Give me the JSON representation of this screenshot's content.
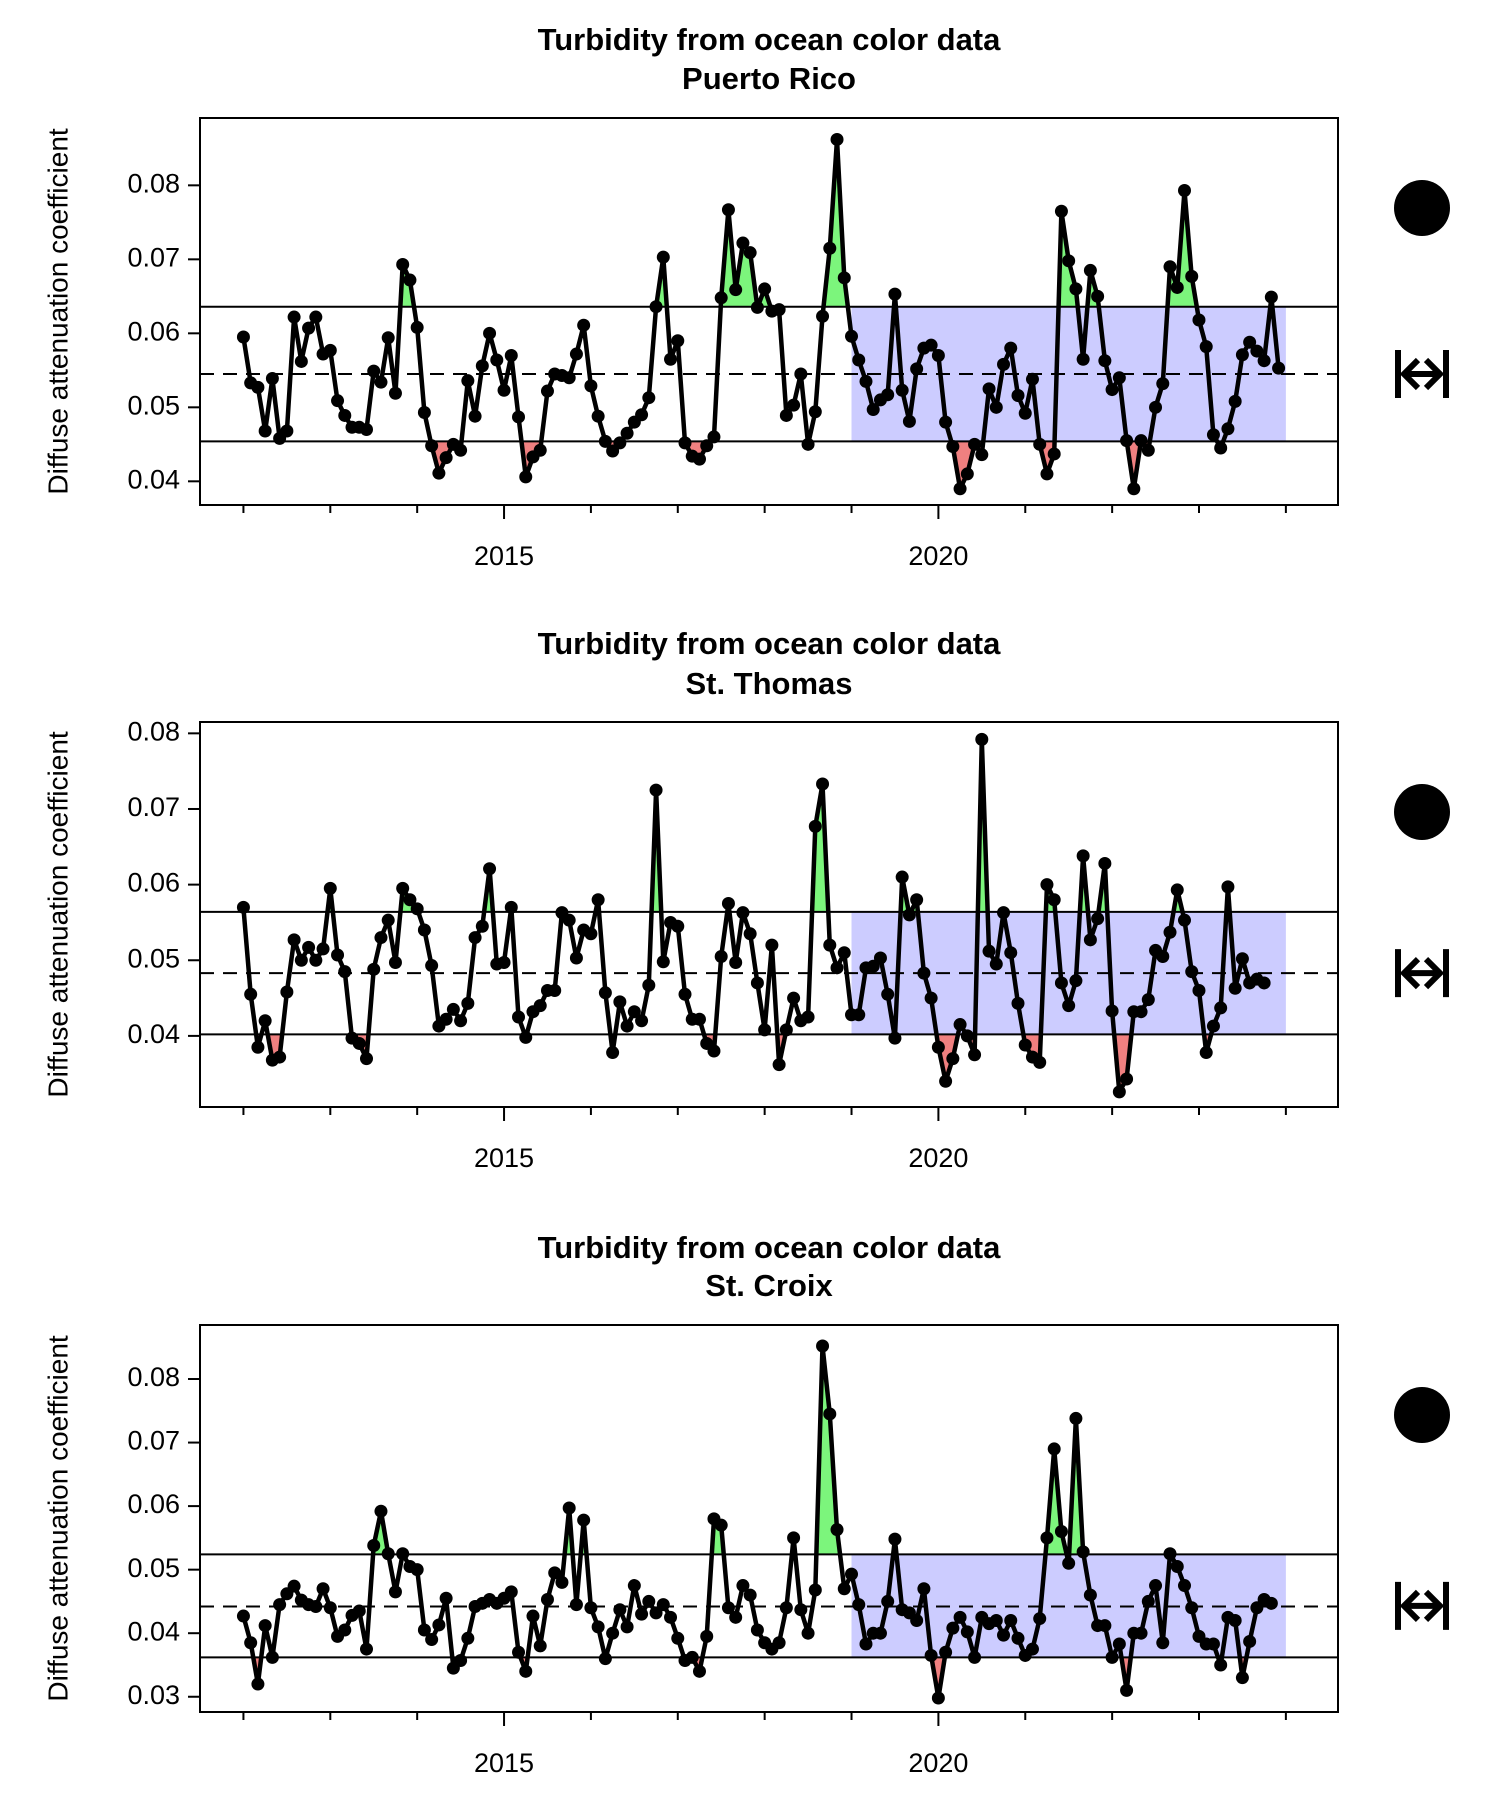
{
  "chart_data": [
    {
      "type": "line",
      "title": "Turbidity from ocean color data",
      "subtitle": "Puerto Rico",
      "xlabel": "",
      "ylabel": "Diffuse attenuation coefficient",
      "x_ticks": [
        "2015",
        "2020"
      ],
      "y_ticks": [
        "0.04",
        "0.05",
        "0.06",
        "0.07",
        "0.08"
      ],
      "xlim": [
        2011.5,
        2024.6
      ],
      "ylim": [
        0.0368,
        0.0891
      ],
      "grid": false,
      "mean": 0.0545,
      "upper_bound": 0.0636,
      "lower_bound": 0.0454,
      "recent_period": [
        2019.0,
        2024.0
      ],
      "trend_symbol": "filled-circle",
      "variability_symbol": "double-arrow",
      "colors": {
        "line": "#000000",
        "above": "#7CF57C",
        "below": "#F08080",
        "recent_shade": "#CCCCFF"
      },
      "series": [
        {
          "x_start": 2012.0,
          "x_step": 0.08333,
          "values": [
            0.0595,
            0.0533,
            0.0527,
            0.0468,
            0.0539,
            0.0458,
            0.0468,
            0.0622,
            0.0562,
            0.0607,
            0.0622,
            0.0572,
            0.0577,
            0.0509,
            0.0489,
            0.0473,
            0.0473,
            0.047,
            0.0549,
            0.0534,
            0.0594,
            0.0519,
            0.0693,
            0.0672,
            0.0608,
            0.0493,
            0.0448,
            0.0411,
            0.0432,
            0.045,
            0.0442,
            0.0536,
            0.0488,
            0.0556,
            0.06,
            0.0564,
            0.0523,
            0.057,
            0.0487,
            0.0406,
            0.0433,
            0.0442,
            0.0522,
            0.0545,
            0.0543,
            0.054,
            0.0572,
            0.0611,
            0.0529,
            0.0488,
            0.0454,
            0.0441,
            0.0452,
            0.0465,
            0.048,
            0.049,
            0.0513,
            0.0636,
            0.0703,
            0.0565,
            0.059,
            0.0452,
            0.0434,
            0.043,
            0.0448,
            0.046,
            0.0648,
            0.0767,
            0.0659,
            0.0722,
            0.0709,
            0.0635,
            0.066,
            0.063,
            0.0632,
            0.0489,
            0.0503,
            0.0545,
            0.045,
            0.0494,
            0.0623,
            0.0715,
            0.0862,
            0.0675,
            0.0596,
            0.0564,
            0.0535,
            0.0497,
            0.051,
            0.0517,
            0.0653,
            0.0523,
            0.0481,
            0.0552,
            0.058,
            0.0584,
            0.057,
            0.048,
            0.0447,
            0.039,
            0.041,
            0.045,
            0.0436,
            0.0525,
            0.05,
            0.0558,
            0.058,
            0.0516,
            0.0492,
            0.0538,
            0.045,
            0.041,
            0.0437,
            0.0765,
            0.0698,
            0.066,
            0.0565,
            0.0685,
            0.065,
            0.0563,
            0.0524,
            0.054,
            0.0455,
            0.039,
            0.0455,
            0.0442,
            0.05,
            0.0532,
            0.069,
            0.0662,
            0.0793,
            0.0677,
            0.0618,
            0.0582,
            0.0463,
            0.0445,
            0.0471,
            0.0508,
            0.0571,
            0.0588,
            0.0576,
            0.0563,
            0.0649,
            0.0553
          ]
        }
      ]
    },
    {
      "type": "line",
      "title": "Turbidity from ocean color data",
      "subtitle": "St. Thomas",
      "xlabel": "",
      "ylabel": "Diffuse attenuation coefficient",
      "x_ticks": [
        "2015",
        "2020"
      ],
      "y_ticks": [
        "0.04",
        "0.05",
        "0.06",
        "0.07",
        "0.08"
      ],
      "xlim": [
        2011.5,
        2024.6
      ],
      "ylim": [
        0.0306,
        0.0815
      ],
      "grid": false,
      "mean": 0.0483,
      "upper_bound": 0.0564,
      "lower_bound": 0.0402,
      "recent_period": [
        2019.0,
        2024.0
      ],
      "trend_symbol": "filled-circle",
      "variability_symbol": "double-arrow",
      "colors": {
        "line": "#000000",
        "above": "#7CF57C",
        "below": "#F08080",
        "recent_shade": "#CCCCFF"
      },
      "series": [
        {
          "x_start": 2012.0,
          "x_step": 0.08333,
          "values": [
            0.057,
            0.0455,
            0.0385,
            0.042,
            0.0368,
            0.0372,
            0.0458,
            0.0527,
            0.05,
            0.0517,
            0.05,
            0.0515,
            0.0595,
            0.0507,
            0.0485,
            0.0397,
            0.039,
            0.037,
            0.0488,
            0.053,
            0.0553,
            0.0497,
            0.0595,
            0.058,
            0.0568,
            0.054,
            0.0493,
            0.0413,
            0.0422,
            0.0435,
            0.042,
            0.0443,
            0.053,
            0.0545,
            0.0621,
            0.0495,
            0.0497,
            0.057,
            0.0425,
            0.0398,
            0.0432,
            0.044,
            0.046,
            0.046,
            0.0563,
            0.0553,
            0.0503,
            0.054,
            0.0535,
            0.058,
            0.0457,
            0.0378,
            0.0445,
            0.0413,
            0.0432,
            0.042,
            0.0467,
            0.0725,
            0.0498,
            0.055,
            0.0545,
            0.0455,
            0.0422,
            0.0422,
            0.039,
            0.038,
            0.0505,
            0.0575,
            0.0497,
            0.0563,
            0.0535,
            0.047,
            0.0408,
            0.052,
            0.0362,
            0.0408,
            0.045,
            0.042,
            0.0425,
            0.0677,
            0.0733,
            0.052,
            0.049,
            0.051,
            0.0428,
            0.0428,
            0.049,
            0.0492,
            0.0503,
            0.0455,
            0.0397,
            0.061,
            0.056,
            0.058,
            0.0483,
            0.045,
            0.0385,
            0.034,
            0.037,
            0.0415,
            0.04,
            0.0375,
            0.0792,
            0.0512,
            0.0495,
            0.0563,
            0.051,
            0.0443,
            0.0388,
            0.0372,
            0.0365,
            0.06,
            0.058,
            0.047,
            0.044,
            0.0473,
            0.0638,
            0.0527,
            0.0555,
            0.0628,
            0.0433,
            0.0326,
            0.0343,
            0.0432,
            0.0432,
            0.0448,
            0.0513,
            0.0505,
            0.0537,
            0.0593,
            0.0553,
            0.0485,
            0.046,
            0.0378,
            0.0413,
            0.0437,
            0.0597,
            0.0463,
            0.0502,
            0.047,
            0.0475,
            0.047
          ]
        }
      ]
    },
    {
      "type": "line",
      "title": "Turbidity from ocean color data",
      "subtitle": "St. Croix",
      "xlabel": "",
      "ylabel": "Diffuse attenuation coefficient",
      "x_ticks": [
        "2015",
        "2020"
      ],
      "y_ticks": [
        "0.03",
        "0.04",
        "0.05",
        "0.06",
        "0.07",
        "0.08"
      ],
      "xlim": [
        2011.5,
        2024.6
      ],
      "ylim": [
        0.0276,
        0.0885
      ],
      "grid": false,
      "mean": 0.0442,
      "upper_bound": 0.0524,
      "lower_bound": 0.0362,
      "recent_period": [
        2019.0,
        2024.0
      ],
      "trend_symbol": "filled-circle",
      "variability_symbol": "double-arrow",
      "colors": {
        "line": "#000000",
        "above": "#7CF57C",
        "below": "#F08080",
        "recent_shade": "#CCCCFF"
      },
      "series": [
        {
          "x_start": 2012.0,
          "x_step": 0.08333,
          "values": [
            0.0427,
            0.0385,
            0.032,
            0.0412,
            0.0362,
            0.0445,
            0.0462,
            0.0474,
            0.0452,
            0.0445,
            0.0442,
            0.047,
            0.044,
            0.0395,
            0.0405,
            0.0428,
            0.0435,
            0.0375,
            0.0538,
            0.0592,
            0.0525,
            0.0465,
            0.0525,
            0.0505,
            0.05,
            0.0405,
            0.039,
            0.0413,
            0.0455,
            0.0345,
            0.0357,
            0.0392,
            0.0442,
            0.0447,
            0.0453,
            0.0447,
            0.0455,
            0.0465,
            0.037,
            0.034,
            0.0427,
            0.038,
            0.0453,
            0.0495,
            0.048,
            0.0597,
            0.0445,
            0.0578,
            0.044,
            0.041,
            0.036,
            0.04,
            0.0437,
            0.041,
            0.0475,
            0.043,
            0.045,
            0.0432,
            0.0445,
            0.0425,
            0.0392,
            0.0357,
            0.0362,
            0.034,
            0.0395,
            0.058,
            0.057,
            0.044,
            0.0425,
            0.0475,
            0.046,
            0.0405,
            0.0385,
            0.0375,
            0.0385,
            0.044,
            0.055,
            0.0437,
            0.04,
            0.0468,
            0.0852,
            0.0745,
            0.0563,
            0.047,
            0.0493,
            0.0445,
            0.0383,
            0.04,
            0.04,
            0.045,
            0.0548,
            0.0437,
            0.0432,
            0.042,
            0.047,
            0.0365,
            0.0298,
            0.037,
            0.0408,
            0.0425,
            0.0402,
            0.0362,
            0.0425,
            0.0415,
            0.042,
            0.0397,
            0.042,
            0.0392,
            0.0365,
            0.0375,
            0.0423,
            0.055,
            0.069,
            0.056,
            0.051,
            0.0738,
            0.0528,
            0.046,
            0.0412,
            0.0412,
            0.0362,
            0.0383,
            0.031,
            0.04,
            0.04,
            0.045,
            0.0475,
            0.0385,
            0.0525,
            0.0505,
            0.0475,
            0.044,
            0.0395,
            0.0383,
            0.0383,
            0.035,
            0.0425,
            0.042,
            0.033,
            0.0387,
            0.044,
            0.0453,
            0.0447
          ]
        }
      ]
    }
  ]
}
